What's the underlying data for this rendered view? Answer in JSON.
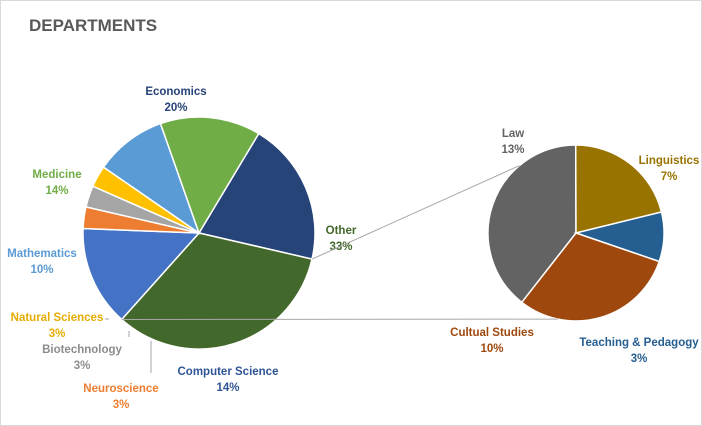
{
  "chart_data": {
    "type": "pie",
    "subtype": "bar-of-pie",
    "title": "DEPARTMENTS",
    "main_pie": [
      {
        "name": "Economics",
        "label": "20%",
        "value": 20,
        "color": "#264478"
      },
      {
        "name": "Other",
        "label": "33%",
        "value": 33,
        "color": "#43682b"
      },
      {
        "name": "Computer Science",
        "label": "14%",
        "value": 14,
        "color": "#4472c4"
      },
      {
        "name": "Neuroscience",
        "label": "3%",
        "value": 3,
        "color": "#ed7d31"
      },
      {
        "name": "Biotechnology",
        "label": "3%",
        "value": 3,
        "color": "#a5a5a5"
      },
      {
        "name": "Natural Sciences",
        "label": "3%",
        "value": 3,
        "color": "#ffc000"
      },
      {
        "name": "Mathematics",
        "label": "10%",
        "value": 10,
        "color": "#5b9bd5"
      },
      {
        "name": "Medicine",
        "label": "14%",
        "value": 14,
        "color": "#70ad47"
      }
    ],
    "secondary_pie": [
      {
        "name": "Law",
        "label": "13%",
        "value": 13,
        "color": "#636363"
      },
      {
        "name": "Linguistics",
        "label": "7%",
        "value": 7,
        "color": "#997300"
      },
      {
        "name": "Teaching  & Pedagogy",
        "label": "3%",
        "value": 3,
        "color": "#255e91"
      },
      {
        "name": "Cultual Studies",
        "label": "10%",
        "value": 10,
        "color": "#9e480e"
      }
    ],
    "legend": "none"
  }
}
